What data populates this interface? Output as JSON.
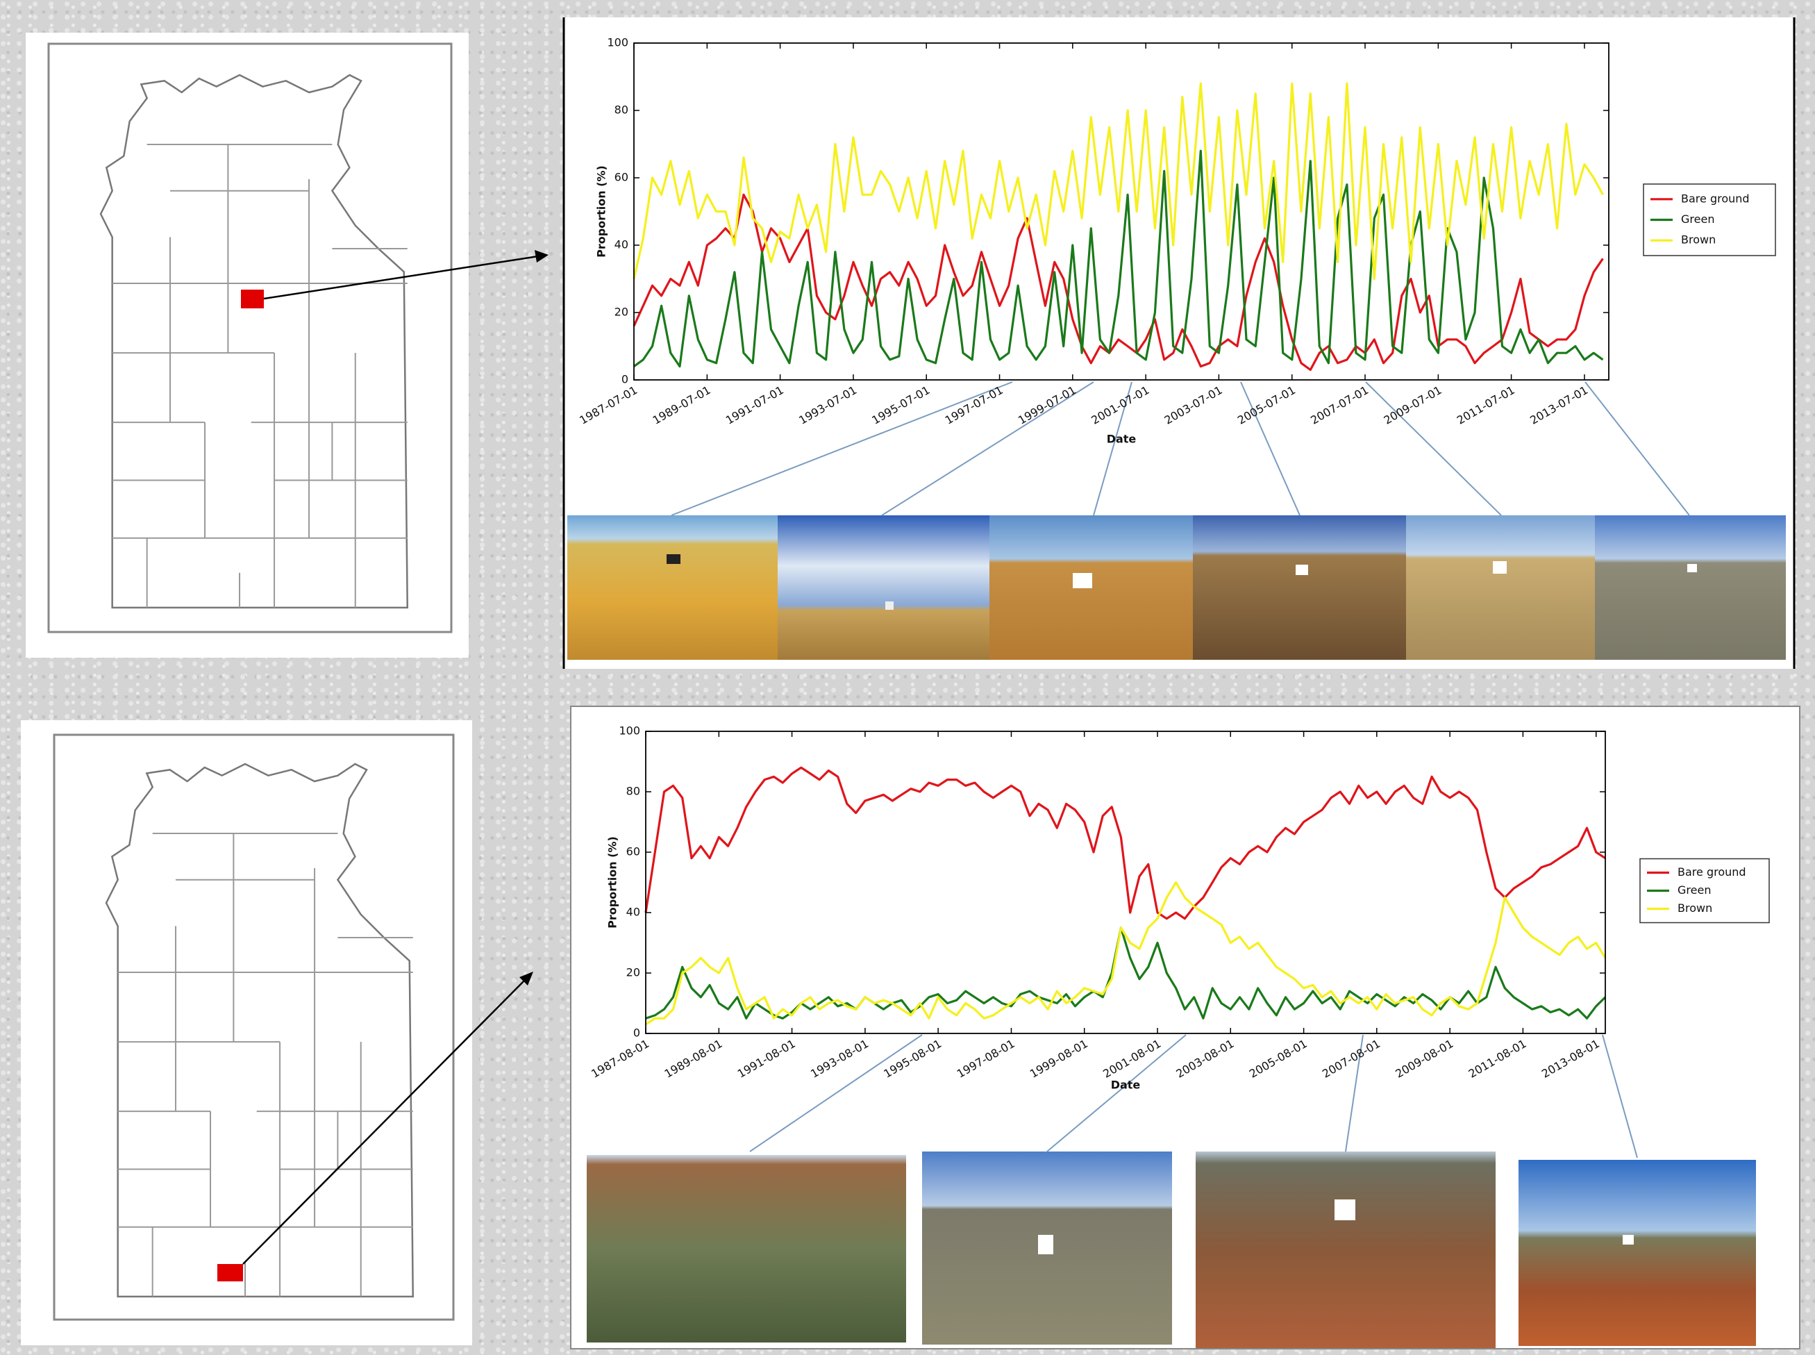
{
  "chart_data": [
    {
      "type": "line",
      "xlabel": "Date",
      "ylabel": "Proportion (%)",
      "legend": "right",
      "xlim": [
        "1987-07-01",
        "2014-03-01"
      ],
      "xticks": [
        "1987-07-01",
        "1989-07-01",
        "1991-07-01",
        "1993-07-01",
        "1995-07-01",
        "1997-07-01",
        "1999-07-01",
        "2001-07-01",
        "2003-07-01",
        "2005-07-01",
        "2007-07-01",
        "2009-07-01",
        "2011-07-01",
        "2013-07-01"
      ],
      "ylim": [
        0,
        100
      ],
      "yticks": [
        0,
        20,
        40,
        60,
        80,
        100
      ],
      "x": [
        "1987-07-01",
        "1987-10-01",
        "1988-01-01",
        "1988-04-01",
        "1988-07-01",
        "1988-10-01",
        "1989-01-01",
        "1989-04-01",
        "1989-07-01",
        "1989-10-01",
        "1990-01-01",
        "1990-04-01",
        "1990-07-01",
        "1990-10-01",
        "1991-01-01",
        "1991-04-01",
        "1991-07-01",
        "1991-10-01",
        "1992-01-01",
        "1992-04-01",
        "1992-07-01",
        "1992-10-01",
        "1993-01-01",
        "1993-04-01",
        "1993-07-01",
        "1993-10-01",
        "1994-01-01",
        "1994-04-01",
        "1994-07-01",
        "1994-10-01",
        "1995-01-01",
        "1995-04-01",
        "1995-07-01",
        "1995-10-01",
        "1996-01-01",
        "1996-04-01",
        "1996-07-01",
        "1996-10-01",
        "1997-01-01",
        "1997-04-01",
        "1997-07-01",
        "1997-10-01",
        "1998-01-01",
        "1998-04-01",
        "1998-07-01",
        "1998-10-01",
        "1999-01-01",
        "1999-04-01",
        "1999-07-01",
        "1999-10-01",
        "2000-01-01",
        "2000-04-01",
        "2000-07-01",
        "2000-10-01",
        "2001-01-01",
        "2001-04-01",
        "2001-07-01",
        "2001-10-01",
        "2002-01-01",
        "2002-04-01",
        "2002-07-01",
        "2002-10-01",
        "2003-01-01",
        "2003-04-01",
        "2003-07-01",
        "2003-10-01",
        "2004-01-01",
        "2004-04-01",
        "2004-07-01",
        "2004-10-01",
        "2005-01-01",
        "2005-04-01",
        "2005-07-01",
        "2005-10-01",
        "2006-01-01",
        "2006-04-01",
        "2006-07-01",
        "2006-10-01",
        "2007-01-01",
        "2007-04-01",
        "2007-07-01",
        "2007-10-01",
        "2008-01-01",
        "2008-04-01",
        "2008-07-01",
        "2008-10-01",
        "2009-01-01",
        "2009-04-01",
        "2009-07-01",
        "2009-10-01",
        "2010-01-01",
        "2010-04-01",
        "2010-07-01",
        "2010-10-01",
        "2011-01-01",
        "2011-04-01",
        "2011-07-01",
        "2011-10-01",
        "2012-01-01",
        "2012-04-01",
        "2012-07-01",
        "2012-10-01",
        "2013-01-01",
        "2013-04-01",
        "2013-07-01",
        "2013-10-01",
        "2014-01-01"
      ],
      "series": [
        {
          "name": "Bare ground",
          "color": "#e0151b",
          "values": [
            16,
            22,
            28,
            25,
            30,
            28,
            35,
            28,
            40,
            42,
            45,
            42,
            55,
            50,
            38,
            45,
            42,
            35,
            40,
            45,
            25,
            20,
            18,
            25,
            35,
            28,
            22,
            30,
            32,
            28,
            35,
            30,
            22,
            25,
            40,
            32,
            25,
            28,
            38,
            30,
            22,
            28,
            42,
            48,
            35,
            22,
            35,
            30,
            18,
            10,
            5,
            10,
            8,
            12,
            10,
            8,
            12,
            18,
            6,
            8,
            15,
            10,
            4,
            5,
            10,
            12,
            10,
            25,
            35,
            42,
            35,
            22,
            12,
            5,
            3,
            8,
            10,
            5,
            6,
            10,
            8,
            12,
            5,
            8,
            25,
            30,
            20,
            25,
            10,
            12,
            12,
            10,
            5,
            8,
            10,
            12,
            20,
            30,
            14,
            12,
            10,
            12,
            12,
            15,
            25,
            32,
            36
          ]
        },
        {
          "name": "Green",
          "color": "#1a7a1a",
          "values": [
            4,
            6,
            10,
            22,
            8,
            4,
            25,
            12,
            6,
            5,
            18,
            32,
            8,
            5,
            38,
            15,
            10,
            5,
            22,
            35,
            8,
            6,
            38,
            15,
            8,
            12,
            35,
            10,
            6,
            7,
            30,
            12,
            6,
            5,
            18,
            30,
            8,
            6,
            35,
            12,
            6,
            8,
            28,
            10,
            6,
            10,
            32,
            10,
            40,
            8,
            45,
            12,
            8,
            25,
            55,
            8,
            6,
            20,
            62,
            10,
            8,
            30,
            68,
            10,
            8,
            28,
            58,
            12,
            10,
            35,
            60,
            8,
            6,
            30,
            65,
            10,
            5,
            48,
            58,
            8,
            6,
            48,
            55,
            10,
            8,
            40,
            50,
            12,
            8,
            45,
            38,
            12,
            20,
            60,
            45,
            10,
            8,
            15,
            8,
            12,
            5,
            8,
            8,
            10,
            6,
            8,
            6
          ]
        },
        {
          "name": "Brown",
          "color": "#f5f01e",
          "values": [
            30,
            42,
            60,
            55,
            65,
            52,
            62,
            48,
            55,
            50,
            50,
            40,
            66,
            48,
            45,
            35,
            44,
            42,
            55,
            45,
            52,
            38,
            70,
            50,
            72,
            55,
            55,
            62,
            58,
            50,
            60,
            48,
            62,
            45,
            65,
            52,
            68,
            42,
            55,
            48,
            65,
            50,
            60,
            45,
            55,
            40,
            62,
            50,
            68,
            48,
            78,
            55,
            75,
            50,
            80,
            50,
            80,
            45,
            75,
            40,
            84,
            55,
            88,
            50,
            78,
            40,
            80,
            55,
            85,
            45,
            65,
            35,
            88,
            50,
            85,
            45,
            78,
            35,
            88,
            40,
            75,
            30,
            70,
            45,
            72,
            35,
            75,
            45,
            70,
            40,
            65,
            52,
            72,
            42,
            70,
            50,
            75,
            48,
            65,
            55,
            70,
            45,
            76,
            55,
            64,
            60,
            55
          ]
        }
      ]
    },
    {
      "type": "line",
      "xlabel": "Date",
      "ylabel": "Proportion (%)",
      "legend": "right",
      "xlim": [
        "1987-08-01",
        "2013-11-01"
      ],
      "xticks": [
        "1987-08-01",
        "1989-08-01",
        "1991-08-01",
        "1993-08-01",
        "1995-08-01",
        "1997-08-01",
        "1999-08-01",
        "2001-08-01",
        "2003-08-01",
        "2005-08-01",
        "2007-08-01",
        "2009-08-01",
        "2011-08-01",
        "2013-08-01"
      ],
      "ylim": [
        0,
        100
      ],
      "yticks": [
        0,
        20,
        40,
        60,
        80,
        100
      ],
      "x": [
        "1987-08-01",
        "1987-11-01",
        "1988-02-01",
        "1988-05-01",
        "1988-08-01",
        "1988-11-01",
        "1989-02-01",
        "1989-05-01",
        "1989-08-01",
        "1989-11-01",
        "1990-02-01",
        "1990-05-01",
        "1990-08-01",
        "1990-11-01",
        "1991-02-01",
        "1991-05-01",
        "1991-08-01",
        "1991-11-01",
        "1992-02-01",
        "1992-05-01",
        "1992-08-01",
        "1992-11-01",
        "1993-02-01",
        "1993-05-01",
        "1993-08-01",
        "1993-11-01",
        "1994-02-01",
        "1994-05-01",
        "1994-08-01",
        "1994-11-01",
        "1995-02-01",
        "1995-05-01",
        "1995-08-01",
        "1995-11-01",
        "1996-02-01",
        "1996-05-01",
        "1996-08-01",
        "1996-11-01",
        "1997-02-01",
        "1997-05-01",
        "1997-08-01",
        "1997-11-01",
        "1998-02-01",
        "1998-05-01",
        "1998-08-01",
        "1998-11-01",
        "1999-02-01",
        "1999-05-01",
        "1999-08-01",
        "1999-11-01",
        "2000-02-01",
        "2000-05-01",
        "2000-08-01",
        "2000-11-01",
        "2001-02-01",
        "2001-05-01",
        "2001-08-01",
        "2001-11-01",
        "2002-02-01",
        "2002-05-01",
        "2002-08-01",
        "2002-11-01",
        "2003-02-01",
        "2003-05-01",
        "2003-08-01",
        "2003-11-01",
        "2004-02-01",
        "2004-05-01",
        "2004-08-01",
        "2004-11-01",
        "2005-02-01",
        "2005-05-01",
        "2005-08-01",
        "2005-11-01",
        "2006-02-01",
        "2006-05-01",
        "2006-08-01",
        "2006-11-01",
        "2007-02-01",
        "2007-05-01",
        "2007-08-01",
        "2007-11-01",
        "2008-02-01",
        "2008-05-01",
        "2008-08-01",
        "2008-11-01",
        "2009-02-01",
        "2009-05-01",
        "2009-08-01",
        "2009-11-01",
        "2010-02-01",
        "2010-05-01",
        "2010-08-01",
        "2010-11-01",
        "2011-02-01",
        "2011-05-01",
        "2011-08-01",
        "2011-11-01",
        "2012-02-01",
        "2012-05-01",
        "2012-08-01",
        "2012-11-01",
        "2013-02-01",
        "2013-05-01",
        "2013-08-01",
        "2013-11-01"
      ],
      "series": [
        {
          "name": "Bare ground",
          "color": "#e0151b",
          "values": [
            40,
            60,
            80,
            82,
            78,
            58,
            62,
            58,
            65,
            62,
            68,
            75,
            80,
            84,
            85,
            83,
            86,
            88,
            86,
            84,
            87,
            85,
            76,
            73,
            77,
            78,
            79,
            77,
            79,
            81,
            80,
            83,
            82,
            84,
            84,
            82,
            83,
            80,
            78,
            80,
            82,
            80,
            72,
            76,
            74,
            68,
            76,
            74,
            70,
            60,
            72,
            75,
            65,
            40,
            52,
            56,
            40,
            38,
            40,
            38,
            42,
            45,
            50,
            55,
            58,
            56,
            60,
            62,
            60,
            65,
            68,
            66,
            70,
            72,
            74,
            78,
            80,
            76,
            82,
            78,
            80,
            76,
            80,
            82,
            78,
            76,
            85,
            80,
            78,
            80,
            78,
            74,
            60,
            48,
            45,
            48,
            50,
            52,
            55,
            56,
            58,
            60,
            62,
            68,
            60,
            58
          ]
        },
        {
          "name": "Green",
          "color": "#1a7a1a",
          "values": [
            5,
            6,
            8,
            12,
            22,
            15,
            12,
            16,
            10,
            8,
            12,
            5,
            10,
            8,
            6,
            5,
            7,
            10,
            8,
            10,
            12,
            9,
            10,
            8,
            12,
            10,
            8,
            10,
            11,
            7,
            9,
            12,
            13,
            10,
            11,
            14,
            12,
            10,
            12,
            10,
            9,
            13,
            14,
            12,
            11,
            10,
            13,
            9,
            12,
            14,
            12,
            20,
            35,
            25,
            18,
            22,
            30,
            20,
            15,
            8,
            12,
            5,
            15,
            10,
            8,
            12,
            8,
            15,
            10,
            6,
            12,
            8,
            10,
            14,
            10,
            12,
            8,
            14,
            12,
            10,
            13,
            11,
            9,
            12,
            10,
            13,
            11,
            8,
            12,
            10,
            14,
            10,
            12,
            22,
            15,
            12,
            10,
            8,
            9,
            7,
            8,
            6,
            8,
            5,
            9,
            12
          ]
        },
        {
          "name": "Brown",
          "color": "#f5f01e",
          "values": [
            3,
            5,
            5,
            8,
            20,
            22,
            25,
            22,
            20,
            25,
            15,
            8,
            10,
            12,
            5,
            8,
            6,
            10,
            12,
            8,
            10,
            11,
            9,
            8,
            12,
            10,
            11,
            10,
            8,
            6,
            10,
            5,
            12,
            8,
            6,
            10,
            8,
            5,
            6,
            8,
            10,
            12,
            10,
            12,
            8,
            14,
            10,
            12,
            15,
            14,
            13,
            18,
            35,
            30,
            28,
            35,
            38,
            45,
            50,
            45,
            42,
            40,
            38,
            36,
            30,
            32,
            28,
            30,
            26,
            22,
            20,
            18,
            15,
            16,
            12,
            14,
            10,
            12,
            10,
            12,
            8,
            13,
            10,
            11,
            12,
            8,
            6,
            10,
            12,
            9,
            8,
            10,
            20,
            30,
            45,
            40,
            35,
            32,
            30,
            28,
            26,
            30,
            32,
            28,
            30,
            25
          ]
        }
      ]
    }
  ]
}
